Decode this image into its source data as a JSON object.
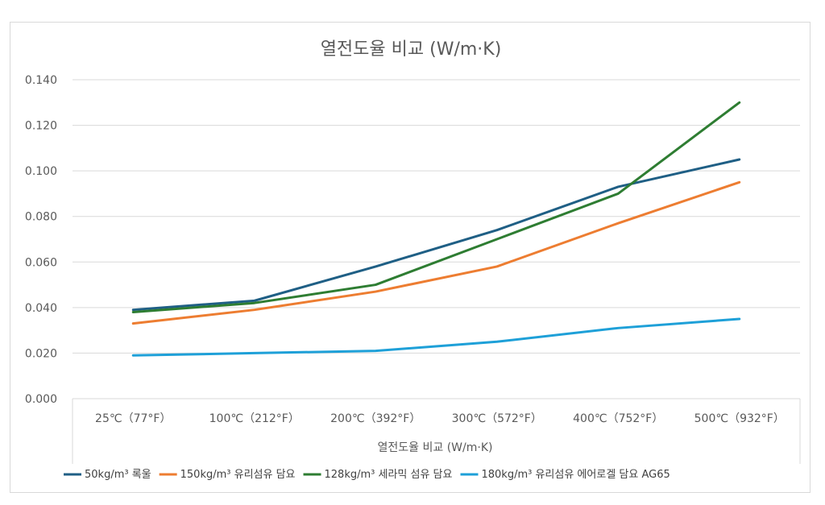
{
  "chart_data": {
    "type": "line",
    "title": "열전도율 비교 (W/m·K)",
    "xlabel": "열전도율 비교 (W/m·K)",
    "ylabel": "",
    "categories": [
      "25℃（77°F）",
      "100℃（212°F）",
      "200℃（392°F）",
      "300℃（572°F）",
      "400℃（752°F）",
      "500℃（932°F）"
    ],
    "y_ticks": [
      "0.000",
      "0.020",
      "0.040",
      "0.060",
      "0.080",
      "0.100",
      "0.120",
      "0.140"
    ],
    "ylim": [
      0,
      0.14
    ],
    "grid": true,
    "legend_position": "bottom",
    "series": [
      {
        "name": "50kg/m³ 록울",
        "color": "#1f5f85",
        "values": [
          0.039,
          0.043,
          0.058,
          0.074,
          0.093,
          0.105
        ]
      },
      {
        "name": "150kg/m³ 유리섬유 담요",
        "color": "#ed7d31",
        "values": [
          0.033,
          0.039,
          0.047,
          0.058,
          0.077,
          0.095
        ]
      },
      {
        "name": "128kg/m³ 세라믹 섬유 담요",
        "color": "#2e7d32",
        "values": [
          0.038,
          0.042,
          0.05,
          0.07,
          0.09,
          0.13
        ]
      },
      {
        "name": "180kg/m³ 유리섬유 에어로겔 담요 AG65",
        "color": "#1ea0d8",
        "values": [
          0.019,
          0.02,
          0.021,
          0.025,
          0.031,
          0.035
        ]
      }
    ]
  }
}
